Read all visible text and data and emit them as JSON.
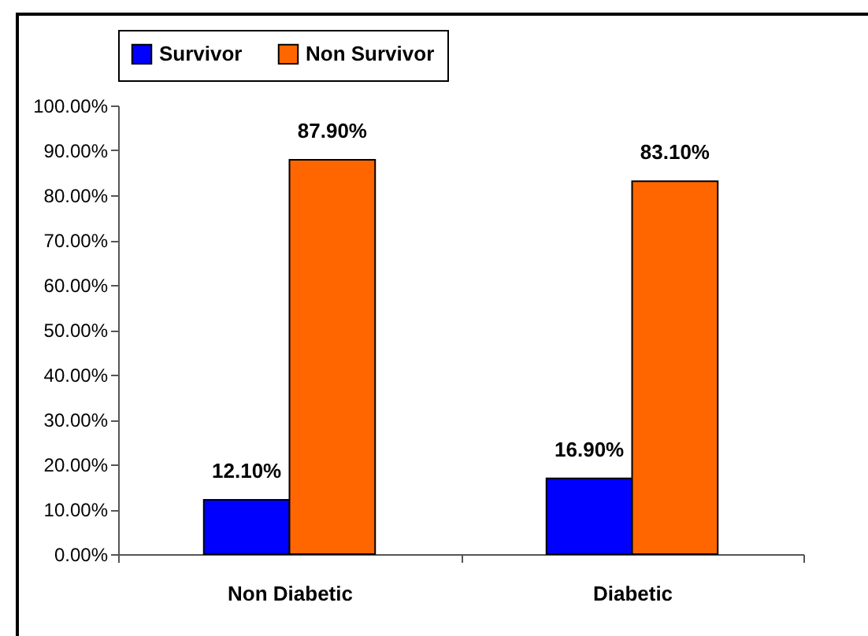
{
  "chart_data": {
    "type": "bar",
    "categories": [
      "Non Diabetic",
      "Diabetic"
    ],
    "series": [
      {
        "name": "Survivor",
        "color": "#0000ff",
        "values": [
          12.1,
          16.9
        ],
        "value_labels": [
          "12.10%",
          "16.90%"
        ]
      },
      {
        "name": "Non Survivor",
        "color": "#ff6600",
        "values": [
          87.9,
          83.1
        ],
        "value_labels": [
          "87.90%",
          "83.10%"
        ]
      }
    ],
    "ylim": [
      0,
      100
    ],
    "yticks": [
      {
        "value": 0,
        "label": "0.00%"
      },
      {
        "value": 10,
        "label": "10.00%"
      },
      {
        "value": 20,
        "label": "20.00%"
      },
      {
        "value": 30,
        "label": "30.00%"
      },
      {
        "value": 40,
        "label": "40.00%"
      },
      {
        "value": 50,
        "label": "50.00%"
      },
      {
        "value": 60,
        "label": "60.00%"
      },
      {
        "value": 70,
        "label": "70.00%"
      },
      {
        "value": 80,
        "label": "80.00%"
      },
      {
        "value": 90,
        "label": "90.00%"
      },
      {
        "value": 100,
        "label": "100.00%"
      }
    ],
    "grid": false,
    "legend": "top"
  }
}
